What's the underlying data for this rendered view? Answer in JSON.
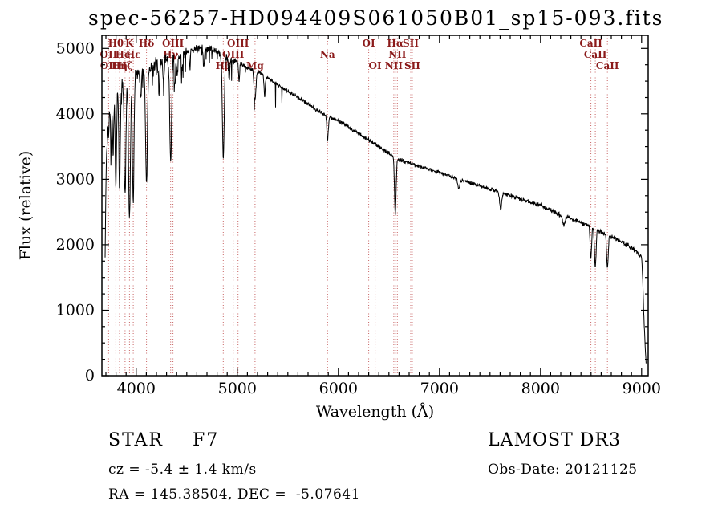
{
  "title": "spec-56257-HD094409S061050B01_sp15-093.fits",
  "chart_data": {
    "type": "line",
    "title": "spec-56257-HD094409S061050B01_sp15-093.fits",
    "xlabel": "Wavelength (Å)",
    "ylabel": "Flux (relative)",
    "xlim": [
      3660,
      9065
    ],
    "ylim": [
      0,
      5200
    ],
    "x_ticks": [
      4000,
      5000,
      6000,
      7000,
      8000,
      9000
    ],
    "y_ticks": [
      0,
      1000,
      2000,
      3000,
      4000,
      5000
    ],
    "x_minor_step": 100,
    "y_minor_step": 250,
    "grid": false,
    "line_color": "#000000",
    "marker_line_color": "#c66060",
    "label_color": "#8b1a1a",
    "continuum": [
      [
        3690,
        1500
      ],
      [
        3700,
        3000
      ],
      [
        3720,
        4100
      ],
      [
        3740,
        4300
      ],
      [
        3760,
        4350
      ],
      [
        3800,
        4400
      ],
      [
        3850,
        4450
      ],
      [
        3900,
        4500
      ],
      [
        3950,
        4550
      ],
      [
        4000,
        4600
      ],
      [
        4100,
        4650
      ],
      [
        4200,
        4750
      ],
      [
        4300,
        4800
      ],
      [
        4400,
        4850
      ],
      [
        4500,
        4950
      ],
      [
        4600,
        5000
      ],
      [
        4700,
        5000
      ],
      [
        4800,
        4950
      ],
      [
        4900,
        4850
      ],
      [
        5000,
        4800
      ],
      [
        5100,
        4700
      ],
      [
        5200,
        4650
      ],
      [
        5300,
        4550
      ],
      [
        5400,
        4450
      ],
      [
        5500,
        4350
      ],
      [
        5600,
        4250
      ],
      [
        5700,
        4150
      ],
      [
        5800,
        4050
      ],
      [
        5900,
        3950
      ],
      [
        6000,
        3900
      ],
      [
        6100,
        3800
      ],
      [
        6200,
        3700
      ],
      [
        6300,
        3600
      ],
      [
        6400,
        3500
      ],
      [
        6500,
        3400
      ],
      [
        6600,
        3300
      ],
      [
        6700,
        3250
      ],
      [
        6800,
        3200
      ],
      [
        6900,
        3150
      ],
      [
        7000,
        3100
      ],
      [
        7200,
        3000
      ],
      [
        7400,
        2900
      ],
      [
        7600,
        2800
      ],
      [
        7800,
        2700
      ],
      [
        8000,
        2600
      ],
      [
        8200,
        2450
      ],
      [
        8400,
        2350
      ],
      [
        8600,
        2200
      ],
      [
        8800,
        2050
      ],
      [
        8900,
        1950
      ],
      [
        8950,
        1900
      ],
      [
        8990,
        1820
      ],
      [
        9000,
        1800
      ],
      [
        9008,
        1600
      ],
      [
        9020,
        1000
      ],
      [
        9035,
        450
      ],
      [
        9045,
        180
      ]
    ],
    "absorption_features": [
      {
        "wl": 3727,
        "depth": 500,
        "sigma": 6
      },
      {
        "wl": 3750,
        "depth": 900,
        "sigma": 6
      },
      {
        "wl": 3771,
        "depth": 1000,
        "sigma": 6
      },
      {
        "wl": 3798,
        "depth": 1500,
        "sigma": 7
      },
      {
        "wl": 3835,
        "depth": 1600,
        "sigma": 7
      },
      {
        "wl": 3889,
        "depth": 1800,
        "sigma": 8
      },
      {
        "wl": 3933,
        "depth": 2100,
        "sigma": 9
      },
      {
        "wl": 3970,
        "depth": 1900,
        "sigma": 8
      },
      {
        "wl": 4045,
        "depth": 400,
        "sigma": 5
      },
      {
        "wl": 4101,
        "depth": 1700,
        "sigma": 9
      },
      {
        "wl": 4226,
        "depth": 500,
        "sigma": 5
      },
      {
        "wl": 4271,
        "depth": 350,
        "sigma": 5
      },
      {
        "wl": 4340,
        "depth": 1500,
        "sigma": 9
      },
      {
        "wl": 4383,
        "depth": 450,
        "sigma": 5
      },
      {
        "wl": 4405,
        "depth": 300,
        "sigma": 5
      },
      {
        "wl": 4455,
        "depth": 250,
        "sigma": 5
      },
      {
        "wl": 4531,
        "depth": 300,
        "sigma": 5
      },
      {
        "wl": 4668,
        "depth": 300,
        "sigma": 6
      },
      {
        "wl": 4861,
        "depth": 1550,
        "sigma": 9
      },
      {
        "wl": 4920,
        "depth": 350,
        "sigma": 5
      },
      {
        "wl": 5018,
        "depth": 300,
        "sigma": 5
      },
      {
        "wl": 5175,
        "depth": 450,
        "sigma": 9
      },
      {
        "wl": 5270,
        "depth": 300,
        "sigma": 6
      },
      {
        "wl": 5893,
        "depth": 380,
        "sigma": 7
      },
      {
        "wl": 6563,
        "depth": 850,
        "sigma": 8
      },
      {
        "wl": 7190,
        "depth": 150,
        "sigma": 10
      },
      {
        "wl": 7605,
        "depth": 250,
        "sigma": 10
      },
      {
        "wl": 8230,
        "depth": 150,
        "sigma": 10
      },
      {
        "wl": 8498,
        "depth": 480,
        "sigma": 7
      },
      {
        "wl": 8542,
        "depth": 580,
        "sigma": 8
      },
      {
        "wl": 8662,
        "depth": 520,
        "sigma": 8
      }
    ],
    "spectral_lines": [
      3727,
      3798,
      3835,
      3889,
      3933,
      3970,
      4101,
      4340,
      4363,
      4861,
      4959,
      5007,
      5175,
      5893,
      6300,
      6363,
      6548,
      6563,
      6583,
      6716,
      6731,
      8498,
      8542,
      8662
    ],
    "line_labels": [
      {
        "text": "Hθ",
        "wl": 3798,
        "row": 1
      },
      {
        "text": "K",
        "wl": 3933,
        "row": 1
      },
      {
        "text": "Hδ",
        "wl": 4101,
        "row": 1
      },
      {
        "text": "OIII",
        "wl": 4363,
        "row": 1
      },
      {
        "text": "OIII",
        "wl": 5007,
        "row": 1
      },
      {
        "text": "OI",
        "wl": 6300,
        "row": 1
      },
      {
        "text": "Hα",
        "wl": 6563,
        "row": 1
      },
      {
        "text": "SII",
        "wl": 6716,
        "row": 1
      },
      {
        "text": "CaII",
        "wl": 8498,
        "row": 1
      },
      {
        "text": "OII",
        "wl": 3727,
        "row": 2
      },
      {
        "text": "HeI",
        "wl": 3889,
        "row": 2
      },
      {
        "text": "Hε",
        "wl": 3970,
        "row": 2
      },
      {
        "text": "Hγ",
        "wl": 4340,
        "row": 2
      },
      {
        "text": "OIII",
        "wl": 4959,
        "row": 2
      },
      {
        "text": "Na",
        "wl": 5893,
        "row": 2
      },
      {
        "text": "NII",
        "wl": 6583,
        "row": 2
      },
      {
        "text": "CaII",
        "wl": 8542,
        "row": 2
      },
      {
        "text": "OII",
        "wl": 3729,
        "row": 3
      },
      {
        "text": "Hη",
        "wl": 3835,
        "row": 3
      },
      {
        "text": "Hζ",
        "wl": 3889,
        "row": 3
      },
      {
        "text": "Hβ",
        "wl": 4861,
        "row": 3
      },
      {
        "text": "Mg",
        "wl": 5175,
        "row": 3
      },
      {
        "text": "OI",
        "wl": 6363,
        "row": 3
      },
      {
        "text": "NII",
        "wl": 6548,
        "row": 3
      },
      {
        "text": "SII",
        "wl": 6731,
        "row": 3
      },
      {
        "text": "CaII",
        "wl": 8662,
        "row": 3
      }
    ]
  },
  "annotations": {
    "class_line": "STAR    F7",
    "cz_line": "cz = -5.4 ± 1.4 km/s",
    "radec_line": "RA = 145.38504, DEC =  -5.07641",
    "survey": "LAMOST DR3",
    "obsdate": "Obs-Date: 20121125"
  }
}
